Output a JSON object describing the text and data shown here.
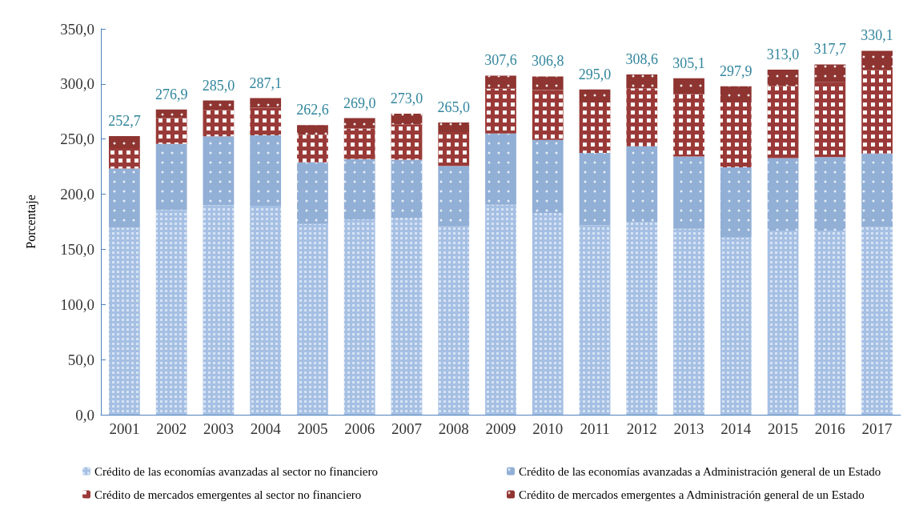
{
  "chart_data": {
    "type": "bar",
    "stacked": true,
    "ylabel": "Porcentaje",
    "categories": [
      "2001",
      "2002",
      "2003",
      "2004",
      "2005",
      "2006",
      "2007",
      "2008",
      "2009",
      "2010",
      "2011",
      "2012",
      "2013",
      "2014",
      "2015",
      "2016",
      "2017"
    ],
    "series": [
      {
        "name": "Crédito de las economías avanzadas al sector no financiero",
        "color": "#a6c0e4",
        "values": [
          169.7,
          185.7,
          190.1,
          189.6,
          173.0,
          177.2,
          178.7,
          170.9,
          190.4,
          183.0,
          171.8,
          175.0,
          168.7,
          160.6,
          167.0,
          167.0,
          170.2
        ]
      },
      {
        "name": "Crédito de las economías avanzadas a Administración general de un Estado",
        "color": "#92afd6",
        "values": [
          53.5,
          59.9,
          62.5,
          63.9,
          55.9,
          54.7,
          52.5,
          54.7,
          64.6,
          66.2,
          65.6,
          68.4,
          65.4,
          63.7,
          65.8,
          66.6,
          66.7
        ]
      },
      {
        "name": "Crédito de mercados emergentes al sector no financiero",
        "color": "#9a3a38",
        "values": [
          18.6,
          23.4,
          23.9,
          24.9,
          25.1,
          27.7,
          32.2,
          30.7,
          40.7,
          45.2,
          45.8,
          52.6,
          56.6,
          59.6,
          65.2,
          67.9,
          75.8
        ]
      },
      {
        "name": "Crédito de mercados emergentes a Administración general de un Estado",
        "color": "#8e3431",
        "values": [
          10.9,
          7.9,
          8.5,
          8.7,
          8.6,
          9.4,
          9.6,
          8.7,
          11.9,
          12.4,
          11.8,
          12.6,
          14.4,
          14.0,
          15.0,
          16.2,
          17.4
        ]
      }
    ],
    "totals": [
      "252,7",
      "276,9",
      "285,0",
      "287,1",
      "262,6",
      "269,0",
      "273,0",
      "265,0",
      "307,6",
      "306,8",
      "295,0",
      "308,6",
      "305,1",
      "297,9",
      "313,0",
      "317,7",
      "330,1"
    ],
    "ylim": [
      0,
      350
    ],
    "yticks": [
      {
        "value": 0,
        "label": "0,0"
      },
      {
        "value": 50,
        "label": "50,0"
      },
      {
        "value": 100,
        "label": "100,0"
      },
      {
        "value": 150,
        "label": "150,0"
      },
      {
        "value": 200,
        "label": "200,0"
      },
      {
        "value": 250,
        "label": "250,0"
      },
      {
        "value": 300,
        "label": "300,0"
      },
      {
        "value": 350,
        "label": "350,0"
      }
    ],
    "grid": false,
    "legend": "bottom"
  }
}
